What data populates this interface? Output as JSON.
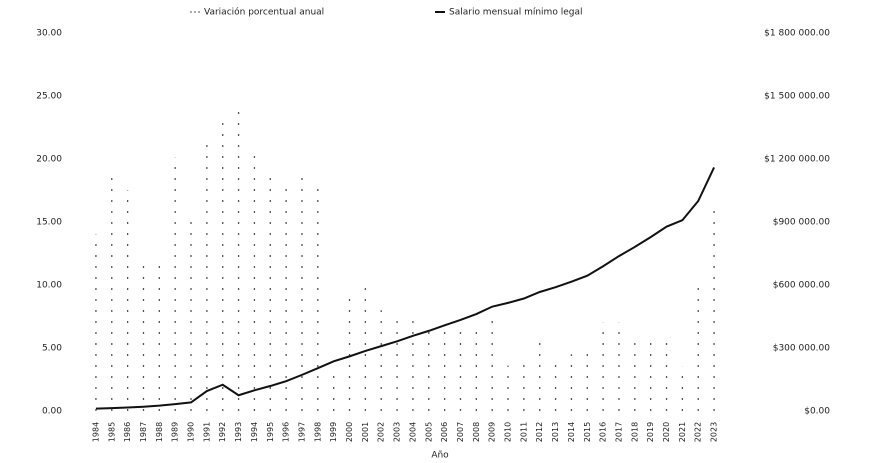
{
  "chart_data": {
    "type": "bar_line",
    "x_label": "Año",
    "categories": [
      "1984",
      "1985",
      "1986",
      "1987",
      "1988",
      "1989",
      "1990",
      "1991",
      "1992",
      "1993",
      "1994",
      "1995",
      "1996",
      "1997",
      "1998",
      "1999",
      "2000",
      "2001",
      "2002",
      "2003",
      "2004",
      "2005",
      "2006",
      "2007",
      "2008",
      "2009",
      "2010",
      "2011",
      "2012",
      "2013",
      "2014",
      "2015",
      "2016",
      "2017",
      "2018",
      "2019",
      "2020",
      "2021",
      "2022",
      "2023"
    ],
    "series": [
      {
        "name": "Variación porcentual anual",
        "type": "bar",
        "color": "#555555",
        "values": [
          14.0,
          18.7,
          17.5,
          12.1,
          11.9,
          20.1,
          15.6,
          21.2,
          23.0,
          24.3,
          20.3,
          18.8,
          18.3,
          18.7,
          17.9,
          3.4,
          9.2,
          10.0,
          8.0,
          7.4,
          7.8,
          6.6,
          6.9,
          6.3,
          6.4,
          7.7,
          3.6,
          4.0,
          5.8,
          4.0,
          4.5,
          4.6,
          7.0,
          7.0,
          5.9,
          6.0,
          6.0,
          3.5,
          10.1,
          16.0
        ]
      },
      {
        "name": "Salario mensual mínimo legal",
        "type": "line",
        "color": "#111111",
        "axis": "y2",
        "values": [
          11298,
          13558,
          16811,
          20510,
          25637,
          32560,
          41025,
          95000,
          125000,
          75000,
          98700,
          118934,
          142125,
          172005,
          203826,
          236460,
          260100,
          286000,
          309000,
          332000,
          358000,
          381500,
          408000,
          433700,
          461500,
          496900,
          515000,
          535600,
          566700,
          589500,
          616000,
          644350,
          689455,
          737717,
          781242,
          828116,
          877803,
          908526,
          1000000,
          1160000
        ]
      }
    ],
    "ylim": [
      0,
      30
    ],
    "yticks": [
      {
        "value": 0,
        "label": "0.00"
      },
      {
        "value": 5,
        "label": "5.00"
      },
      {
        "value": 10,
        "label": "10.00"
      },
      {
        "value": 15,
        "label": "15.00"
      },
      {
        "value": 20,
        "label": "20.00"
      },
      {
        "value": 25,
        "label": "25.00"
      },
      {
        "value": 30,
        "label": "30.00"
      }
    ],
    "y2lim": [
      0,
      1800000
    ],
    "y2ticks": [
      {
        "value": 0,
        "label": "$0.00"
      },
      {
        "value": 300000,
        "label": "$300 000.00"
      },
      {
        "value": 600000,
        "label": "$600 000.00"
      },
      {
        "value": 900000,
        "label": "$900 000.00"
      },
      {
        "value": 1200000,
        "label": "$1 200 000.00"
      },
      {
        "value": 1500000,
        "label": "$1 500 000.00"
      },
      {
        "value": 1800000,
        "label": "$1 800 000.00"
      }
    ]
  }
}
